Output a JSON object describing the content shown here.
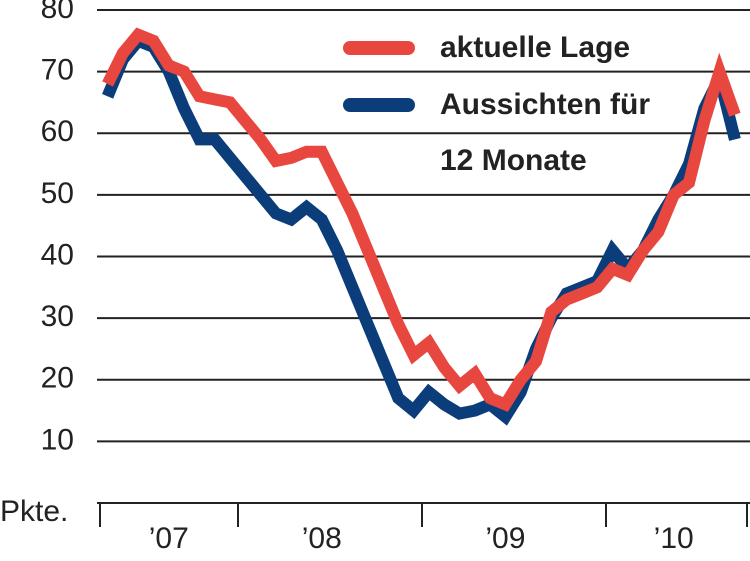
{
  "chart_data": {
    "type": "line",
    "y_label": "Pkte.",
    "categories": [
      null,
      null,
      null,
      null,
      "’07",
      null,
      null,
      null,
      null,
      null,
      null,
      null,
      null,
      null,
      "’08",
      null,
      null,
      null,
      null,
      null,
      null,
      null,
      null,
      null,
      null,
      null,
      "’09",
      null,
      null,
      null,
      null,
      null,
      null,
      null,
      null,
      null,
      null,
      "’10",
      null,
      null,
      null,
      null
    ],
    "series": [
      {
        "name": "aktuelle Lage",
        "color": "#e8473f",
        "values": [
          68,
          73,
          76,
          75,
          71,
          70,
          66,
          65.5,
          65,
          62,
          59,
          55.5,
          56,
          57,
          57,
          52,
          47,
          41,
          35,
          29,
          24,
          26,
          22,
          19,
          21,
          17,
          16,
          20,
          23,
          31,
          33,
          34,
          35,
          38,
          37,
          41,
          44,
          50,
          52,
          62,
          70,
          63
        ]
      },
      {
        "name": "Aussichten für 12 Monate",
        "color": "#0a3d7a",
        "values": [
          66,
          72,
          75,
          74,
          70,
          64,
          59,
          59,
          56,
          53,
          50,
          47,
          46,
          48,
          46,
          41,
          35,
          29,
          23,
          17,
          15,
          18,
          16,
          14.5,
          15,
          16,
          14,
          18,
          25,
          30,
          34,
          35,
          36,
          41,
          38,
          41,
          46,
          50,
          55,
          64,
          69,
          59
        ]
      }
    ],
    "ylim": [
      0,
      80
    ],
    "yticks": [
      10,
      20,
      30,
      40,
      50,
      60,
      70,
      80
    ],
    "grid": true,
    "legend": "top-right"
  }
}
